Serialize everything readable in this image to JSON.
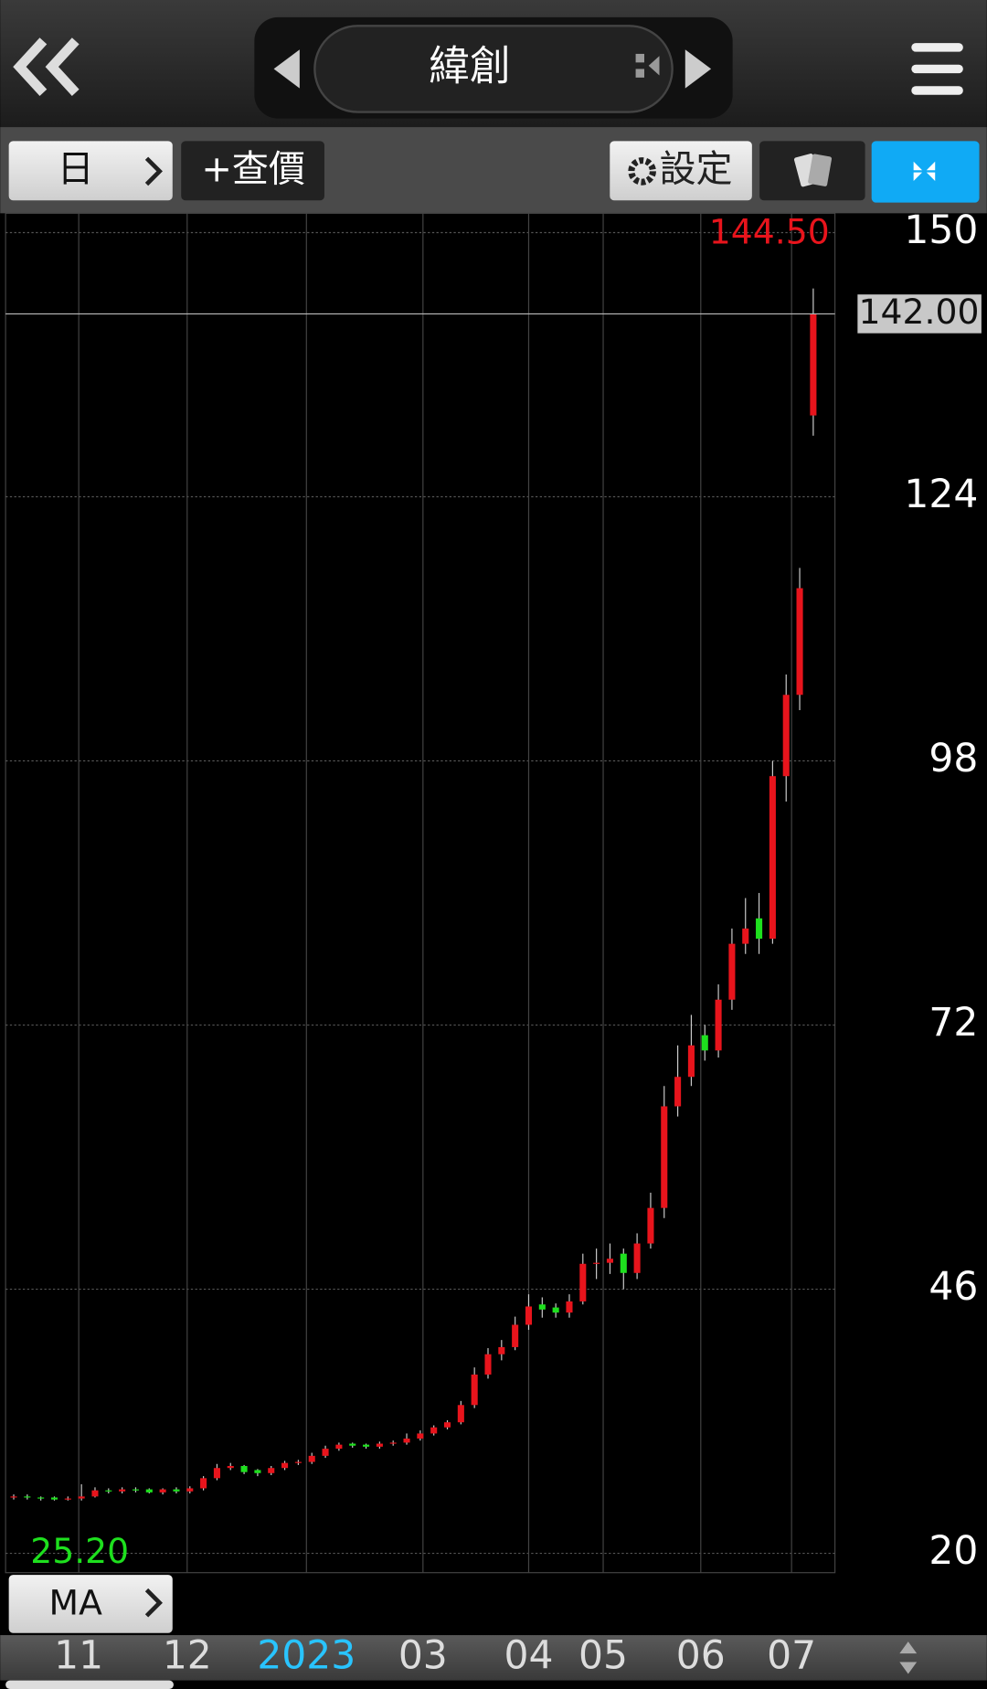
{
  "header": {
    "title": "緯創"
  },
  "toolbar": {
    "period": "日",
    "quote": "+查價",
    "settings": "設定"
  },
  "indicator": {
    "label": "MA"
  },
  "chart_data": {
    "type": "candlestick",
    "open": [
      25.5,
      25.6,
      25.5,
      25.5,
      25.3,
      25.4,
      25.6,
      26.2,
      26.1,
      26.3,
      26.3,
      26.0,
      26.3,
      26.1,
      26.4,
      27.4,
      28.4,
      28.6,
      28.2,
      27.9,
      28.4,
      28.9,
      29.0,
      29.6,
      30.3,
      30.8,
      30.7,
      30.5,
      30.8,
      30.9,
      31.3,
      31.8,
      32.4,
      32.9,
      34.6,
      37.6,
      39.6,
      40.3,
      42.5,
      44.5,
      44.2,
      43.7,
      44.8,
      48.5,
      48.6,
      49.5,
      47.6,
      50.5,
      54.0,
      64.0,
      66.9,
      71.0,
      69.5,
      74.5,
      80.0,
      82.5,
      80.5,
      96.5,
      104.5,
      132.0
    ],
    "high": [
      25.8,
      25.8,
      25.6,
      25.6,
      25.6,
      26.8,
      26.5,
      26.4,
      26.5,
      26.5,
      26.4,
      26.4,
      26.5,
      26.6,
      27.6,
      28.8,
      28.9,
      28.7,
      28.3,
      28.6,
      29.1,
      29.2,
      29.9,
      30.6,
      30.9,
      30.9,
      30.8,
      31.0,
      31.1,
      31.8,
      32.1,
      32.6,
      33.1,
      35.0,
      38.3,
      40.2,
      41.0,
      43.3,
      45.5,
      45.2,
      44.6,
      45.5,
      49.5,
      50.0,
      50.5,
      50.0,
      51.5,
      55.5,
      66.0,
      70.0,
      73.0,
      72.0,
      76.0,
      81.5,
      84.5,
      85.0,
      98.0,
      106.5,
      117.0,
      144.5
    ],
    "low": [
      25.3,
      25.3,
      25.2,
      25.2,
      25.2,
      25.2,
      25.5,
      25.9,
      25.9,
      26.0,
      25.9,
      25.8,
      25.9,
      25.9,
      26.2,
      27.2,
      28.2,
      27.8,
      27.6,
      27.7,
      28.2,
      28.7,
      28.8,
      29.4,
      30.1,
      30.4,
      30.3,
      30.3,
      30.6,
      30.7,
      31.1,
      31.6,
      32.2,
      32.7,
      34.3,
      37.2,
      39.0,
      40.0,
      42.0,
      43.2,
      43.2,
      43.2,
      44.5,
      47.0,
      47.5,
      46.0,
      47.0,
      50.0,
      53.0,
      63.0,
      66.0,
      68.5,
      68.8,
      73.5,
      79.0,
      79.0,
      80.0,
      94.0,
      103.0,
      130.0
    ],
    "close": [
      25.6,
      25.5,
      25.4,
      25.3,
      25.4,
      25.6,
      26.2,
      26.1,
      26.3,
      26.2,
      26.0,
      26.3,
      26.1,
      26.4,
      27.4,
      28.4,
      28.6,
      28.0,
      27.9,
      28.4,
      28.9,
      29.0,
      29.6,
      30.3,
      30.7,
      30.6,
      30.5,
      30.8,
      30.9,
      31.3,
      31.8,
      32.4,
      32.9,
      34.6,
      37.6,
      39.6,
      40.3,
      42.5,
      44.3,
      44.0,
      43.7,
      44.8,
      48.5,
      48.6,
      49.0,
      47.6,
      50.5,
      54.0,
      64.0,
      66.9,
      70.0,
      69.5,
      74.5,
      80.0,
      81.5,
      80.5,
      96.5,
      104.5,
      115.0,
      142.0
    ],
    "up_color": "#e8141c",
    "down_color": "#1ee01e",
    "ylim": [
      18.1,
      151.9
    ],
    "yticks": [
      20,
      46,
      72,
      98,
      124,
      150
    ],
    "xlim": [
      -0.6,
      60.6
    ],
    "xticks": [
      {
        "value": 4.8,
        "label": "11"
      },
      {
        "value": 12.8,
        "label": "12"
      },
      {
        "value": 21.6,
        "label": "2023"
      },
      {
        "value": 30.2,
        "label": "03"
      },
      {
        "value": 38,
        "label": "04"
      },
      {
        "value": 43.5,
        "label": "05"
      },
      {
        "value": 50.7,
        "label": "06"
      },
      {
        "value": 57.4,
        "label": "07"
      }
    ],
    "max_label": "144.50",
    "min_label": "25.20",
    "last_label": "142.00",
    "last_value": 142,
    "grid": true
  }
}
